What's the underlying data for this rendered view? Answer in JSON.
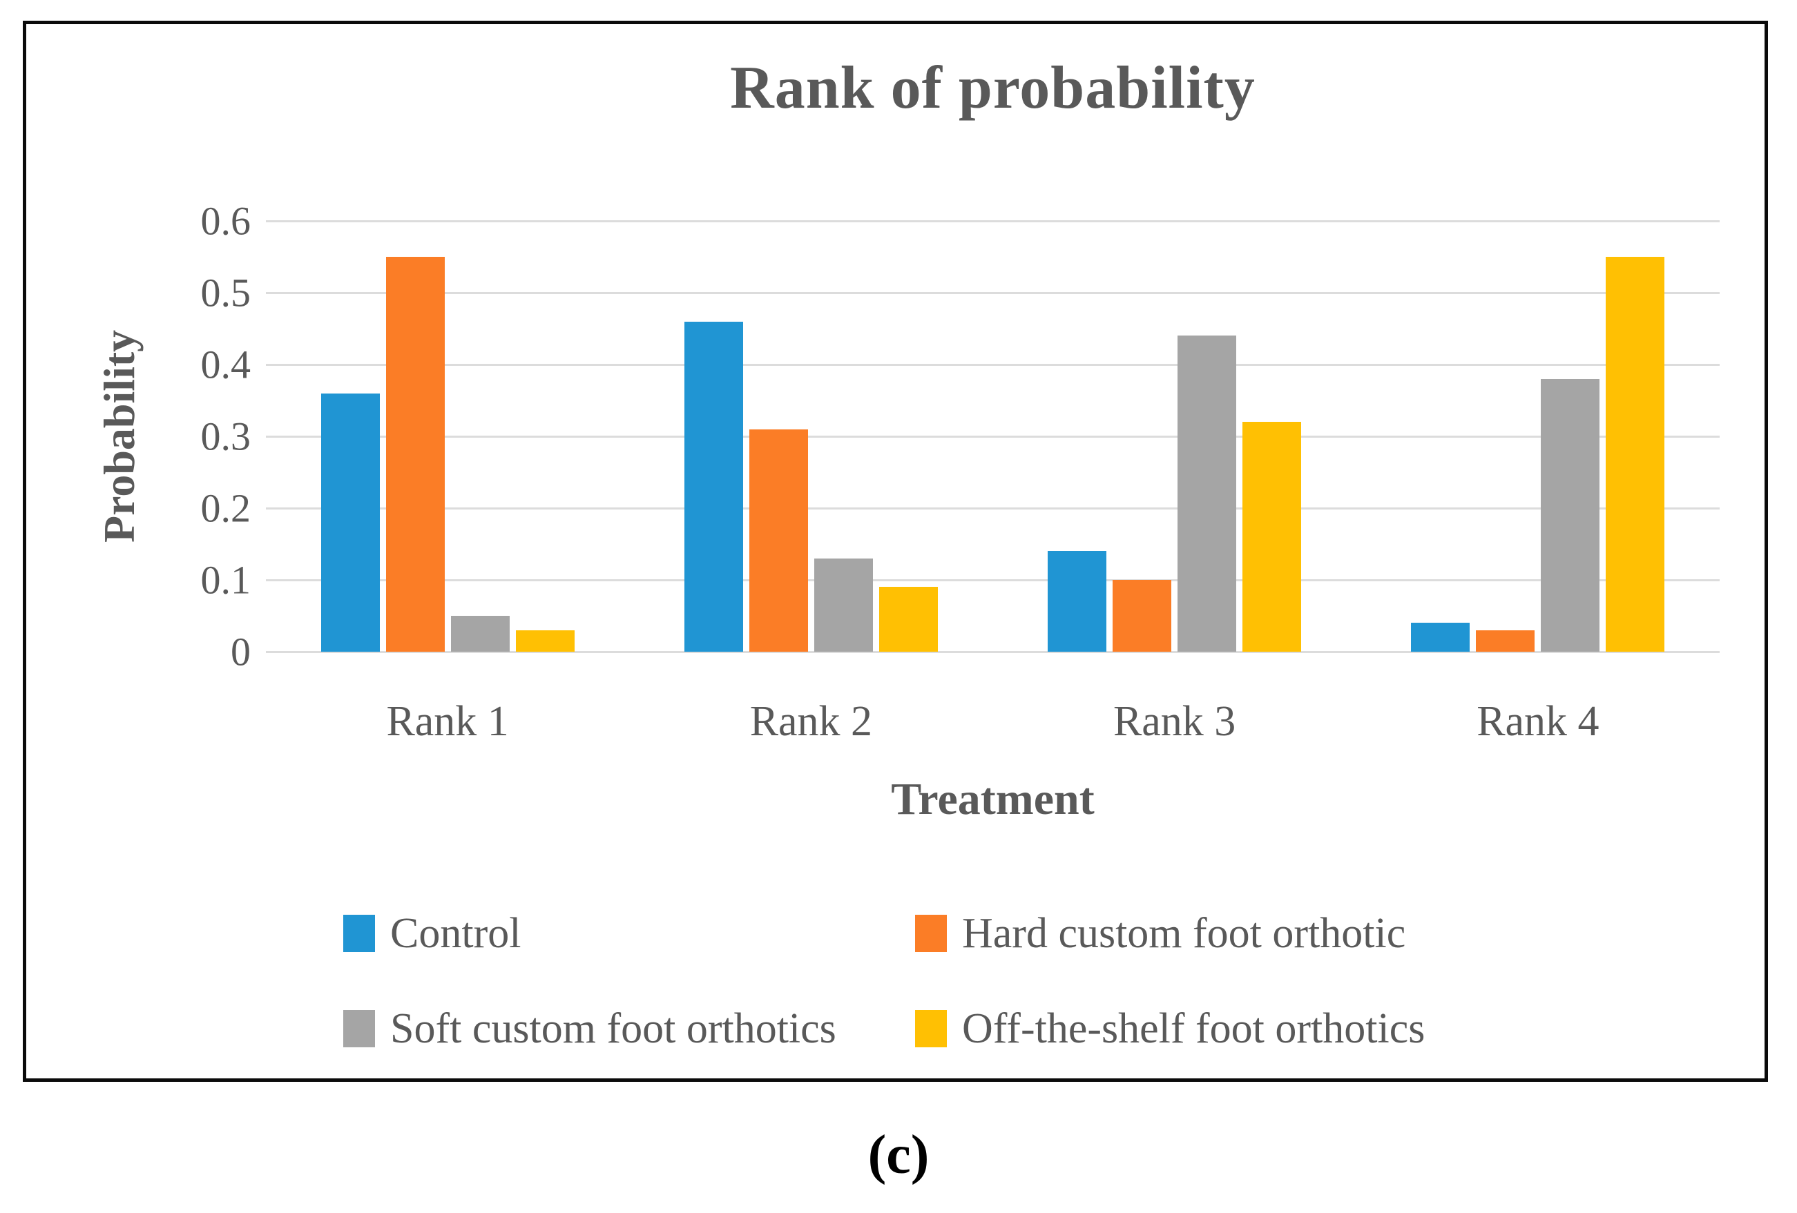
{
  "page": {
    "caption": "(c)"
  },
  "chart_data": {
    "type": "bar",
    "title": "Rank of probability",
    "xlabel": "Treatment",
    "ylabel": "Probability",
    "categories": [
      "Rank 1",
      "Rank 2",
      "Rank 3",
      "Rank 4"
    ],
    "series": [
      {
        "name": "Control",
        "color": "#2095D3",
        "values": [
          0.36,
          0.46,
          0.14,
          0.04
        ]
      },
      {
        "name": "Hard custom foot orthotic",
        "color": "#FB7D26",
        "values": [
          0.55,
          0.31,
          0.1,
          0.03
        ]
      },
      {
        "name": "Soft custom foot orthotics",
        "color": "#A5A5A5",
        "values": [
          0.05,
          0.13,
          0.44,
          0.38
        ]
      },
      {
        "name": "Off-the-shelf foot orthotics",
        "color": "#FFC003",
        "values": [
          0.03,
          0.09,
          0.32,
          0.55
        ]
      }
    ],
    "ylim": [
      0,
      0.6
    ],
    "yticks": [
      0,
      0.1,
      0.2,
      0.3,
      0.4,
      0.5,
      0.6
    ],
    "grid": true,
    "legend_position": "bottom-two-columns",
    "colors": {
      "grid": "#DCDCDC",
      "text": "#595959",
      "frame_border": "#0B0B0B",
      "background": "#FFFFFF",
      "caption": "#000000"
    }
  }
}
